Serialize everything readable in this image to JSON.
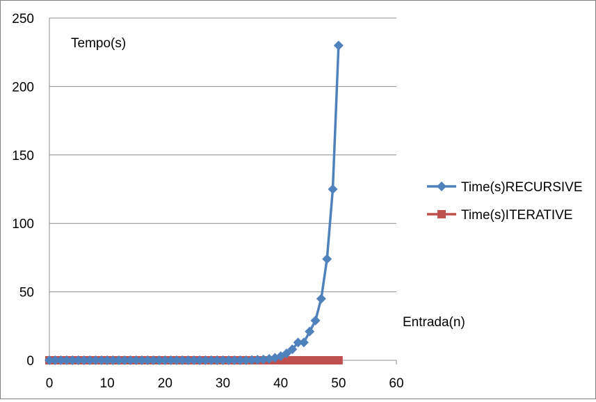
{
  "chart_data": {
    "type": "line",
    "title": "",
    "ylabel": "Tempo(s)",
    "xlabel": "Entrada(n)",
    "xlim": [
      0,
      60
    ],
    "ylim": [
      0,
      250
    ],
    "x_ticks": [
      0,
      10,
      20,
      30,
      40,
      50,
      60
    ],
    "y_ticks": [
      0,
      50,
      100,
      150,
      200,
      250
    ],
    "grid": "horizontal",
    "legend": "right",
    "series": [
      {
        "name": "Time(s)RECURSIVE",
        "color": "#4F81BD",
        "marker": "diamond",
        "x": [
          0,
          1,
          2,
          3,
          4,
          5,
          6,
          7,
          8,
          9,
          10,
          11,
          12,
          13,
          14,
          15,
          16,
          17,
          18,
          19,
          20,
          21,
          22,
          23,
          24,
          25,
          26,
          27,
          28,
          29,
          30,
          31,
          32,
          33,
          34,
          35,
          36,
          37,
          38,
          39,
          40,
          41,
          42,
          43,
          44,
          45,
          46,
          47,
          48,
          49,
          50
        ],
        "values": [
          0,
          0,
          0,
          0,
          0,
          0,
          0,
          0,
          0,
          0,
          0,
          0,
          0,
          0,
          0,
          0,
          0,
          0,
          0,
          0,
          0,
          0,
          0,
          0,
          0,
          0,
          0,
          0,
          0,
          0,
          0,
          0,
          0,
          0,
          0,
          0.2,
          0.4,
          0.6,
          1,
          1.8,
          3,
          5,
          8,
          13,
          13,
          21,
          29,
          45,
          74,
          125,
          230
        ]
      },
      {
        "name": "Time(s)ITERATIVE",
        "color": "#C0504D",
        "marker": "square",
        "x": [
          0,
          1,
          2,
          3,
          4,
          5,
          6,
          7,
          8,
          9,
          10,
          11,
          12,
          13,
          14,
          15,
          16,
          17,
          18,
          19,
          20,
          21,
          22,
          23,
          24,
          25,
          26,
          27,
          28,
          29,
          30,
          31,
          32,
          33,
          34,
          35,
          36,
          37,
          38,
          39,
          40,
          41,
          42,
          43,
          44,
          45,
          46,
          47,
          48,
          49,
          50
        ],
        "values": [
          0,
          0,
          0,
          0,
          0,
          0,
          0,
          0,
          0,
          0,
          0,
          0,
          0,
          0,
          0,
          0,
          0,
          0,
          0,
          0,
          0,
          0,
          0,
          0,
          0,
          0,
          0,
          0,
          0,
          0,
          0,
          0,
          0,
          0,
          0,
          0,
          0,
          0,
          0,
          0,
          0,
          0,
          0,
          0,
          0,
          0,
          0,
          0,
          0,
          0,
          0
        ]
      }
    ]
  }
}
